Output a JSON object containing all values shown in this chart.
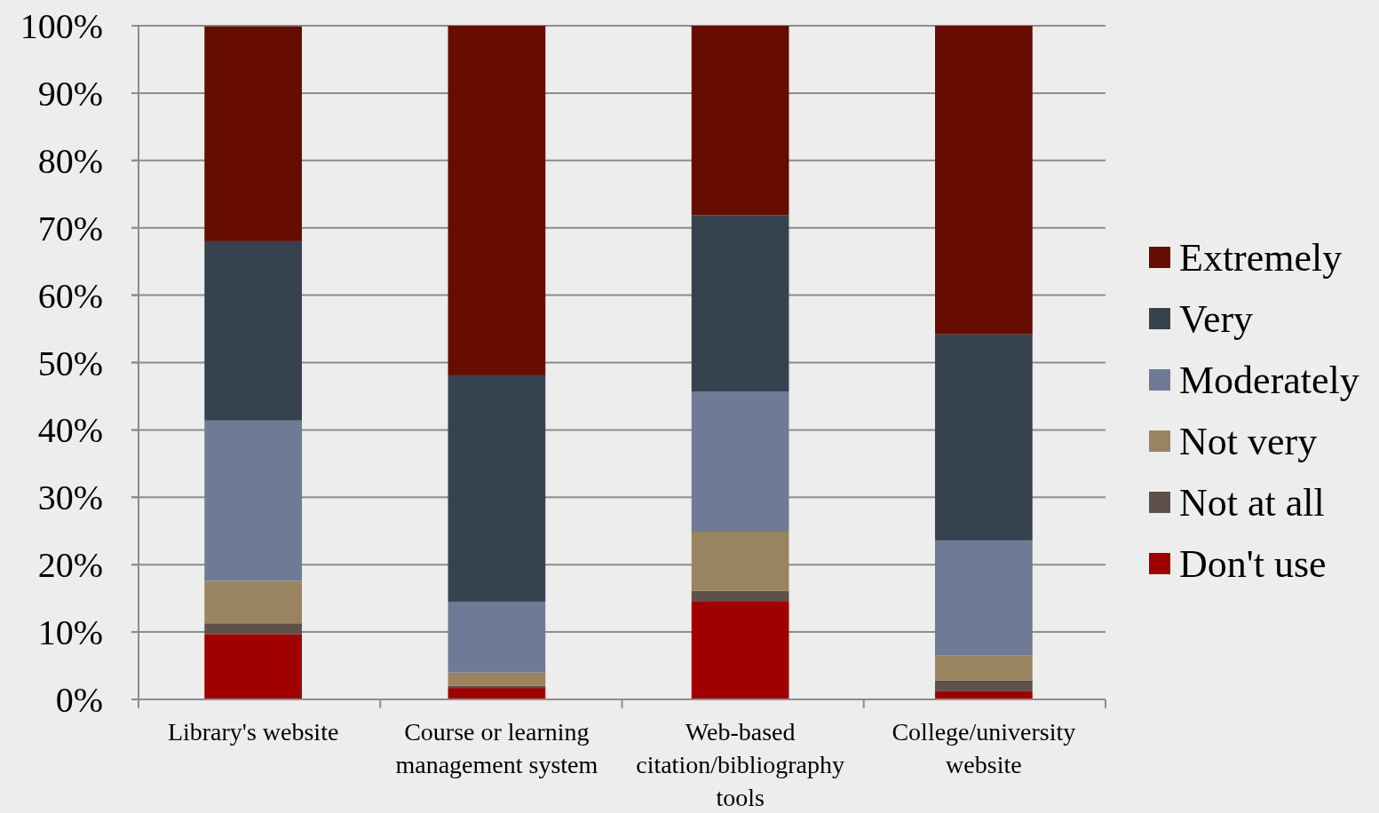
{
  "chart_data": {
    "type": "bar",
    "stacked": true,
    "categories": [
      "Library's website",
      "Course or learning management system",
      "Web-based citation/bibliography tools",
      "College/university website"
    ],
    "series": [
      {
        "name": "Don't use",
        "color": "#a00000",
        "values": [
          9.7,
          1.7,
          14.6,
          1.2
        ]
      },
      {
        "name": "Not at all",
        "color": "#5e504a",
        "values": [
          1.6,
          0.3,
          1.5,
          1.6
        ]
      },
      {
        "name": "Not very",
        "color": "#9a8460",
        "values": [
          6.3,
          2.0,
          8.8,
          3.7
        ]
      },
      {
        "name": "Moderately",
        "color": "#6f7a96",
        "values": [
          23.8,
          10.5,
          20.8,
          17.1
        ]
      },
      {
        "name": "Very",
        "color": "#37424f",
        "values": [
          26.6,
          33.6,
          26.2,
          30.6
        ]
      },
      {
        "name": "Extremely",
        "color": "#660c00",
        "values": [
          31.9,
          51.9,
          28.1,
          45.8
        ]
      }
    ],
    "ylim": [
      0,
      100
    ],
    "yticks": [
      {
        "value": 0,
        "label": "0%"
      },
      {
        "value": 10,
        "label": "10%"
      },
      {
        "value": 20,
        "label": "20%"
      },
      {
        "value": 30,
        "label": "30%"
      },
      {
        "value": 40,
        "label": "40%"
      },
      {
        "value": 50,
        "label": "50%"
      },
      {
        "value": 60,
        "label": "60%"
      },
      {
        "value": 70,
        "label": "70%"
      },
      {
        "value": 80,
        "label": "80%"
      },
      {
        "value": 90,
        "label": "90%"
      },
      {
        "value": 100,
        "label": "100%"
      }
    ],
    "grid": "y",
    "legend": "right"
  }
}
